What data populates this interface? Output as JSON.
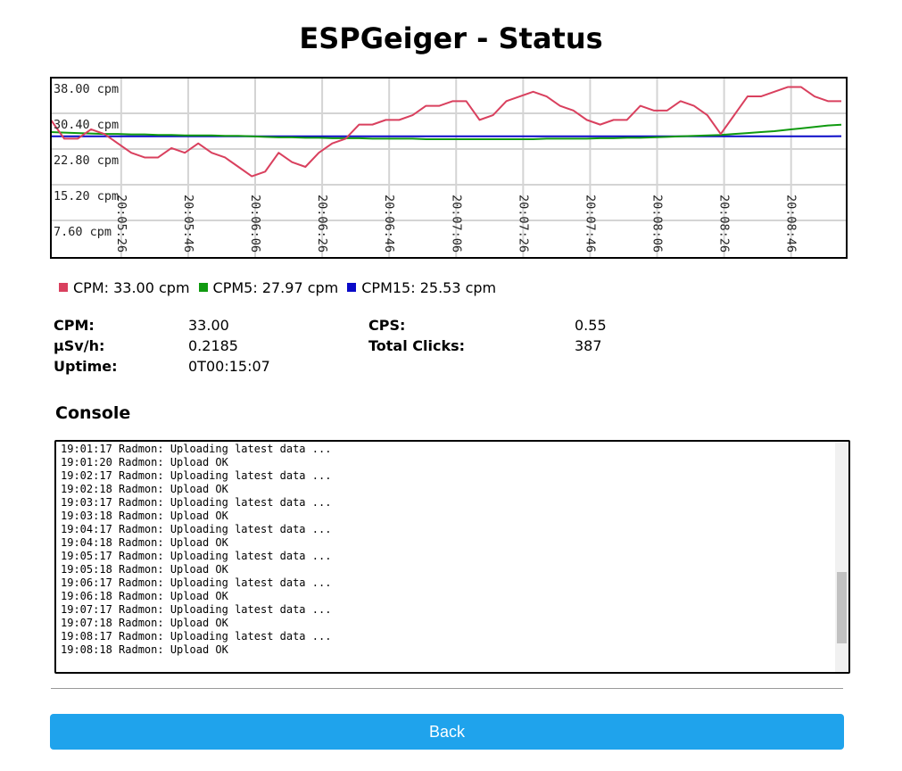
{
  "header": {
    "title": "ESPGeiger - Status"
  },
  "chart_data": {
    "type": "line",
    "x": [
      "20:05:05",
      "20:05:09",
      "20:05:13",
      "20:05:17",
      "20:05:21",
      "20:05:25",
      "20:05:29",
      "20:05:33",
      "20:05:37",
      "20:05:41",
      "20:05:45",
      "20:05:49",
      "20:05:53",
      "20:05:57",
      "20:06:01",
      "20:06:05",
      "20:06:09",
      "20:06:13",
      "20:06:17",
      "20:06:21",
      "20:06:25",
      "20:06:29",
      "20:06:33",
      "20:06:37",
      "20:06:41",
      "20:06:45",
      "20:06:49",
      "20:06:53",
      "20:06:57",
      "20:07:01",
      "20:07:05",
      "20:07:09",
      "20:07:13",
      "20:07:17",
      "20:07:21",
      "20:07:25",
      "20:07:29",
      "20:07:33",
      "20:07:37",
      "20:07:41",
      "20:07:45",
      "20:07:49",
      "20:07:53",
      "20:07:57",
      "20:08:01",
      "20:08:05",
      "20:08:09",
      "20:08:13",
      "20:08:17",
      "20:08:21",
      "20:08:25",
      "20:08:29",
      "20:08:33",
      "20:08:37",
      "20:08:41",
      "20:08:45",
      "20:08:49",
      "20:08:53",
      "20:08:57",
      "20:09:01"
    ],
    "xlim": [
      "20:05:05",
      "20:09:01"
    ],
    "xticks": [
      "20:05:26",
      "20:05:46",
      "20:06:06",
      "20:06:26",
      "20:06:46",
      "20:07:06",
      "20:07:26",
      "20:07:46",
      "20:08:06",
      "20:08:26",
      "20:08:46"
    ],
    "ylim": [
      0,
      38
    ],
    "yticks": [
      {
        "value": 38,
        "label": "38.00 cpm"
      },
      {
        "value": 30.4,
        "label": "30.40 cpm"
      },
      {
        "value": 22.8,
        "label": "22.80 cpm"
      },
      {
        "value": 15.2,
        "label": "15.20 cpm"
      },
      {
        "value": 7.6,
        "label": "7.60 cpm"
      }
    ],
    "grid": true,
    "series": [
      {
        "name": "CPM: 33.00 cpm",
        "color": "#d9405e",
        "values": [
          29,
          25,
          25,
          27,
          26,
          24,
          22,
          21,
          21,
          23,
          22,
          24,
          22,
          21,
          19,
          17,
          18,
          22,
          20,
          19,
          22,
          24,
          25,
          28,
          28,
          29,
          29,
          30,
          32,
          32,
          33,
          33,
          29,
          30,
          33,
          34,
          35,
          34,
          32,
          31,
          29,
          28,
          29,
          29,
          32,
          31,
          31,
          33,
          32,
          30,
          26,
          30,
          34,
          34,
          35,
          36,
          36,
          34,
          33,
          33
        ]
      },
      {
        "name": "CPM5: 27.97 cpm",
        "color": "#109a10",
        "values": [
          26.4,
          26.3,
          26.2,
          26.1,
          26.0,
          26.0,
          25.9,
          25.9,
          25.8,
          25.8,
          25.7,
          25.7,
          25.7,
          25.6,
          25.6,
          25.5,
          25.4,
          25.3,
          25.3,
          25.2,
          25.2,
          25.1,
          25.1,
          25.1,
          25.0,
          25.0,
          25.0,
          25.0,
          24.9,
          24.9,
          24.9,
          24.9,
          24.9,
          24.9,
          24.9,
          24.9,
          24.9,
          25.0,
          25.0,
          25.0,
          25.0,
          25.1,
          25.1,
          25.2,
          25.2,
          25.3,
          25.4,
          25.5,
          25.6,
          25.7,
          25.8,
          26.0,
          26.2,
          26.4,
          26.6,
          26.9,
          27.2,
          27.5,
          27.8,
          27.97
        ]
      },
      {
        "name": "CPM15: 25.53 cpm",
        "color": "#0a0ac8",
        "values": [
          25.5,
          25.5,
          25.5,
          25.5,
          25.5,
          25.5,
          25.5,
          25.5,
          25.5,
          25.5,
          25.5,
          25.5,
          25.5,
          25.5,
          25.5,
          25.5,
          25.5,
          25.5,
          25.5,
          25.5,
          25.5,
          25.5,
          25.5,
          25.5,
          25.5,
          25.5,
          25.5,
          25.5,
          25.5,
          25.5,
          25.5,
          25.5,
          25.5,
          25.5,
          25.5,
          25.5,
          25.5,
          25.5,
          25.5,
          25.5,
          25.5,
          25.5,
          25.5,
          25.5,
          25.5,
          25.5,
          25.5,
          25.5,
          25.5,
          25.5,
          25.5,
          25.5,
          25.5,
          25.5,
          25.5,
          25.5,
          25.5,
          25.5,
          25.5,
          25.53
        ]
      }
    ]
  },
  "stats": {
    "left": [
      {
        "label": "CPM:",
        "value": "33.00"
      },
      {
        "label": "µSv/h:",
        "value": "0.2185"
      },
      {
        "label": "Uptime:",
        "value": "0T00:15:07"
      }
    ],
    "right": [
      {
        "label": "CPS:",
        "value": "0.55"
      },
      {
        "label": "Total Clicks:",
        "value": "387"
      }
    ]
  },
  "console": {
    "title": "Console",
    "lines": [
      "19:01:17 Radmon: Uploading latest data ...",
      "19:01:20 Radmon: Upload OK",
      "19:02:17 Radmon: Uploading latest data ...",
      "19:02:18 Radmon: Upload OK",
      "19:03:17 Radmon: Uploading latest data ...",
      "19:03:18 Radmon: Upload OK",
      "19:04:17 Radmon: Uploading latest data ...",
      "19:04:18 Radmon: Upload OK",
      "19:05:17 Radmon: Uploading latest data ...",
      "19:05:18 Radmon: Upload OK",
      "19:06:17 Radmon: Uploading latest data ...",
      "19:06:18 Radmon: Upload OK",
      "19:07:17 Radmon: Uploading latest data ...",
      "19:07:18 Radmon: Upload OK",
      "19:08:17 Radmon: Uploading latest data ...",
      "19:08:18 Radmon: Upload OK"
    ]
  },
  "button": {
    "label": "Back"
  }
}
